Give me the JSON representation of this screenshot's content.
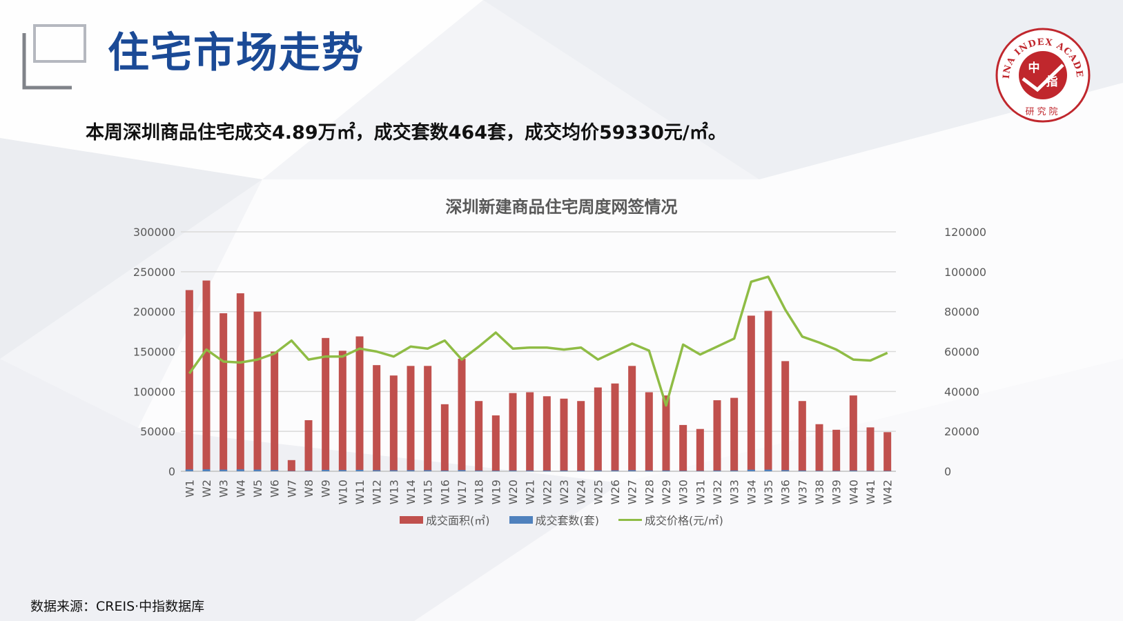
{
  "page": {
    "title": "住宅市场走势",
    "summary": "本周深圳商品住宅成交4.89万㎡，成交套数464套，成交均价59330元/㎡。",
    "source": "数据来源：CREIS·中指数据库"
  },
  "logo": {
    "ring_text": "CHINA INDEX ACADEMY",
    "center_top": "中",
    "center_bottom": "指",
    "bottom_text": "研究院",
    "color": "#c0272d"
  },
  "colors": {
    "area": "#c0504d",
    "units": "#4f81bd",
    "price": "#8fbc45",
    "title": "#1b4a96"
  },
  "chart_data": {
    "type": "bar",
    "title": "深圳新建商品住宅周度网签情况",
    "categories": [
      "W1",
      "W2",
      "W3",
      "W4",
      "W5",
      "W6",
      "W7",
      "W8",
      "W9",
      "W10",
      "W11",
      "W12",
      "W13",
      "W14",
      "W15",
      "W16",
      "W17",
      "W18",
      "W19",
      "W20",
      "W21",
      "W22",
      "W23",
      "W24",
      "W25",
      "W26",
      "W27",
      "W28",
      "W29",
      "W30",
      "W31",
      "W32",
      "W33",
      "W34",
      "W35",
      "W36",
      "W37",
      "W38",
      "W39",
      "W40",
      "W41",
      "W42"
    ],
    "y_left": {
      "min": 0,
      "max": 300000,
      "ticks": [
        "0",
        "50000",
        "100000",
        "150000",
        "200000",
        "250000",
        "300000"
      ]
    },
    "y_right": {
      "min": 0,
      "max": 120000,
      "ticks": [
        "0",
        "20000",
        "40000",
        "60000",
        "80000",
        "100000",
        "120000"
      ]
    },
    "grid": true,
    "legend_position": "bottom",
    "series": [
      {
        "name": "成交面积(㎡)",
        "type": "bar",
        "axis": "left",
        "values": [
          227000,
          239000,
          198000,
          223000,
          200000,
          150000,
          14000,
          64000,
          167000,
          151000,
          169000,
          133000,
          120000,
          132000,
          132000,
          84000,
          141000,
          88000,
          70000,
          98000,
          99000,
          94000,
          91000,
          88000,
          105000,
          110000,
          132000,
          99000,
          95000,
          58000,
          53000,
          89000,
          92000,
          195000,
          201000,
          138000,
          88000,
          59000,
          52000,
          95000,
          55000,
          49000
        ]
      },
      {
        "name": "成交套数(套)",
        "type": "bar",
        "axis": "left",
        "values": [
          2300,
          2500,
          2100,
          2400,
          2100,
          1600,
          150,
          700,
          1800,
          1600,
          1800,
          1400,
          1300,
          1400,
          1400,
          900,
          1500,
          950,
          750,
          1050,
          1050,
          1000,
          1000,
          950,
          1100,
          1150,
          1400,
          1050,
          1000,
          620,
          560,
          950,
          1000,
          2000,
          2100,
          1450,
          940,
          640,
          560,
          1000,
          580,
          464
        ]
      },
      {
        "name": "成交价格(元/㎡)",
        "type": "line",
        "axis": "right",
        "values": [
          49000,
          61000,
          55000,
          54500,
          56000,
          59000,
          65500,
          56000,
          57500,
          57500,
          61500,
          60000,
          57500,
          62500,
          61500,
          65500,
          56000,
          62500,
          69500,
          61500,
          62000,
          62000,
          61000,
          62000,
          56000,
          60000,
          64000,
          60500,
          33000,
          63500,
          58500,
          62500,
          66500,
          95000,
          97500,
          81000,
          67500,
          64500,
          61000,
          56000,
          55500,
          59330
        ]
      }
    ]
  }
}
